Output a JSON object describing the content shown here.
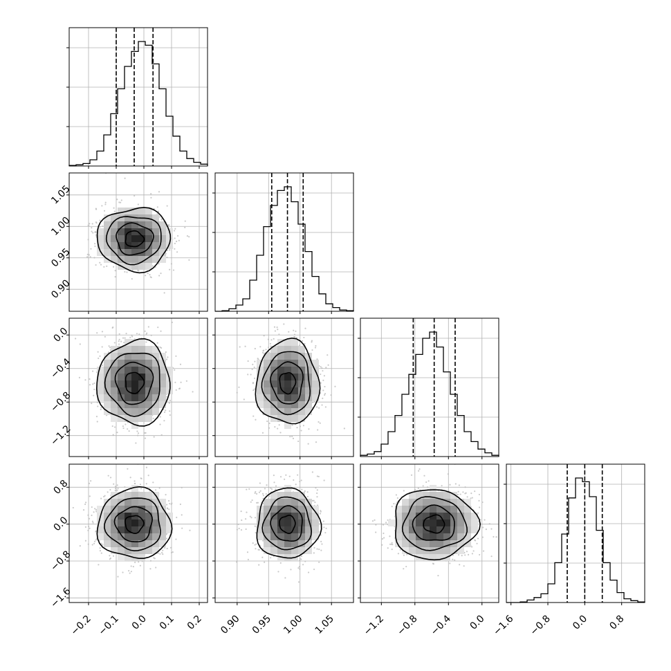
{
  "chart_data": {
    "type": "corner",
    "description_of_panels": "lower-triangle 2D density plots with contours, diagonal 1D histograms with 16/50/84 quantile lines",
    "params": [
      {
        "range": [
          -0.27,
          0.23
        ],
        "ticks": [
          -0.2,
          -0.1,
          0.0,
          0.1,
          0.2
        ],
        "tick_labels": [
          "−0.2",
          "−0.1",
          "0.0",
          "0.1",
          "0.2"
        ],
        "quantiles": [
          -0.1,
          -0.035,
          0.033
        ],
        "hist_center": -0.035,
        "hist_sigma": 0.066
      },
      {
        "range": [
          0.865,
          1.085
        ],
        "ticks": [
          0.9,
          0.95,
          1.0,
          1.05
        ],
        "tick_labels": [
          "0.90",
          "0.95",
          "1.00",
          "1.05"
        ],
        "quantiles": [
          0.955,
          0.98,
          1.005
        ],
        "hist_center": 0.98,
        "hist_sigma": 0.025
      },
      {
        "range": [
          -1.45,
          0.2
        ],
        "ticks": [
          -1.2,
          -0.8,
          -0.4,
          0.0
        ],
        "tick_labels": [
          "−1.2",
          "−0.8",
          "−0.4",
          "0.0"
        ],
        "quantiles": [
          -0.82,
          -0.57,
          -0.32
        ],
        "hist_center": -0.57,
        "hist_sigma": 0.25
      },
      {
        "range": [
          -1.7,
          1.3
        ],
        "ticks": [
          -1.6,
          -0.8,
          0.0,
          0.8
        ],
        "tick_labels": [
          "−1.6",
          "−0.8",
          "0.0",
          "0.8"
        ],
        "quantiles": [
          -0.38,
          0.0,
          0.38
        ],
        "hist_center": 0.0,
        "hist_sigma": 0.38
      }
    ],
    "histograms": [
      {
        "param": 0,
        "bin_edges_start": -0.27,
        "bin_width": 0.025,
        "counts": [
          0.5,
          1,
          2,
          5,
          12,
          25,
          42,
          62,
          80,
          92,
          100,
          97,
          82,
          62,
          40,
          24,
          12,
          6,
          3,
          1.5
        ]
      },
      {
        "param": 1,
        "bin_edges_start": 0.865,
        "bin_width": 0.011,
        "counts": [
          0,
          0.5,
          2,
          5,
          10,
          25,
          45,
          68,
          85,
          97,
          100,
          88,
          70,
          48,
          28,
          14,
          6,
          3,
          1,
          0.5
        ]
      },
      {
        "param": 2,
        "bin_edges_start": -1.45,
        "bin_width": 0.0825,
        "counts": [
          1,
          2,
          4,
          10,
          20,
          33,
          50,
          66,
          82,
          95,
          100,
          88,
          68,
          50,
          33,
          20,
          12,
          6,
          3,
          1
        ]
      },
      {
        "param": 3,
        "bin_edges_start": -1.7,
        "bin_width": 0.15,
        "counts": [
          0,
          0,
          0.5,
          2,
          4,
          7,
          15,
          32,
          55,
          84,
          100,
          97,
          85,
          58,
          32,
          18,
          8,
          3,
          1.5,
          0.5
        ]
      }
    ],
    "densities": [
      {
        "row": 1,
        "col": 0,
        "center": [
          -0.035,
          0.98
        ]
      },
      {
        "row": 2,
        "col": 0,
        "center": [
          -0.035,
          -0.57
        ]
      },
      {
        "row": 2,
        "col": 1,
        "center": [
          0.98,
          -0.57
        ]
      },
      {
        "row": 3,
        "col": 0,
        "center": [
          -0.035,
          0.0
        ]
      },
      {
        "row": 3,
        "col": 1,
        "center": [
          0.98,
          0.0
        ]
      },
      {
        "row": 3,
        "col": 2,
        "center": [
          -0.57,
          0.0
        ]
      }
    ],
    "contour_levels_sigma": [
      0.5,
      1.0,
      1.5,
      2.0
    ],
    "grid": true,
    "title": "",
    "xlabel": "",
    "ylabel": ""
  }
}
